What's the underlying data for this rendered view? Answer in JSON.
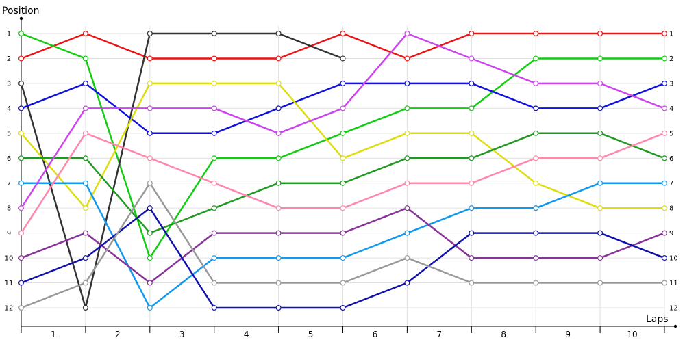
{
  "chart_data": {
    "type": "line",
    "xlabel": "Laps",
    "ylabel": "Position",
    "x_ticks": [
      "1",
      "2",
      "3",
      "4",
      "5",
      "6",
      "7",
      "8",
      "9",
      "10"
    ],
    "y_ticks": [
      "1",
      "2",
      "3",
      "4",
      "5",
      "6",
      "7",
      "8",
      "9",
      "10",
      "11",
      "12"
    ],
    "right_y_ticks": [
      "1",
      "2",
      "3",
      "4",
      "5",
      "6",
      "7",
      "8",
      "9",
      "10",
      "11",
      "12"
    ],
    "grid": true,
    "y_inverted": true,
    "xlim": [
      0,
      10
    ],
    "ylim": [
      1,
      12
    ],
    "series": [
      {
        "color": "#ee1111",
        "x": [
          0,
          1,
          2,
          3,
          4,
          5,
          6,
          7,
          8,
          9,
          10
        ],
        "values": [
          2,
          1,
          2,
          2,
          2,
          1,
          2,
          1,
          1,
          1,
          1
        ]
      },
      {
        "color": "#11cc11",
        "x": [
          0,
          1,
          2,
          3,
          4,
          5,
          6,
          7,
          8,
          9,
          10
        ],
        "values": [
          1,
          2,
          10,
          6,
          6,
          5,
          4,
          4,
          2,
          2,
          2
        ]
      },
      {
        "color": "#333333",
        "x": [
          0,
          1,
          2,
          3,
          4,
          5
        ],
        "values": [
          3,
          12,
          1,
          1,
          1,
          2
        ]
      },
      {
        "color": "#1111dd",
        "x": [
          0,
          1,
          2,
          3,
          4,
          5,
          6,
          7,
          8,
          9,
          10
        ],
        "values": [
          4,
          3,
          5,
          5,
          4,
          3,
          3,
          3,
          4,
          4,
          3
        ]
      },
      {
        "color": "#dddd11",
        "x": [
          0,
          1,
          2,
          3,
          4,
          5,
          6,
          7,
          8,
          9,
          10
        ],
        "values": [
          5,
          8,
          3,
          3,
          3,
          6,
          5,
          5,
          7,
          8,
          8
        ]
      },
      {
        "color": "#229922",
        "x": [
          0,
          1,
          2,
          3,
          4,
          5,
          6,
          7,
          8,
          9,
          10
        ],
        "values": [
          6,
          6,
          9,
          8,
          7,
          7,
          6,
          6,
          5,
          5,
          6
        ]
      },
      {
        "color": "#1199ee",
        "x": [
          0,
          1,
          2,
          3,
          4,
          5,
          6,
          7,
          8,
          9,
          10
        ],
        "values": [
          7,
          7,
          12,
          10,
          10,
          10,
          9,
          8,
          8,
          7,
          7
        ]
      },
      {
        "color": "#cc44ee",
        "x": [
          0,
          1,
          2,
          3,
          4,
          5,
          6,
          7,
          8,
          9,
          10
        ],
        "values": [
          8,
          4,
          4,
          4,
          5,
          4,
          1,
          2,
          3,
          3,
          4
        ]
      },
      {
        "color": "#ff88aa",
        "x": [
          0,
          1,
          2,
          3,
          4,
          5,
          6,
          7,
          8,
          9,
          10
        ],
        "values": [
          9,
          5,
          6,
          7,
          8,
          8,
          7,
          7,
          6,
          6,
          5
        ]
      },
      {
        "color": "#883399",
        "x": [
          0,
          1,
          2,
          3,
          4,
          5,
          6,
          7,
          8,
          9,
          10
        ],
        "values": [
          10,
          9,
          11,
          9,
          9,
          9,
          8,
          10,
          10,
          10,
          9
        ]
      },
      {
        "color": "#1111aa",
        "x": [
          0,
          1,
          2,
          3,
          4,
          5,
          6,
          7,
          8,
          9,
          10
        ],
        "values": [
          11,
          10,
          8,
          12,
          12,
          12,
          11,
          9,
          9,
          9,
          10
        ]
      },
      {
        "color": "#999999",
        "x": [
          0,
          1,
          2,
          3,
          4,
          5,
          6,
          7,
          8,
          9,
          10
        ],
        "values": [
          12,
          11,
          7,
          11,
          11,
          11,
          10,
          11,
          11,
          11,
          11
        ]
      }
    ]
  }
}
